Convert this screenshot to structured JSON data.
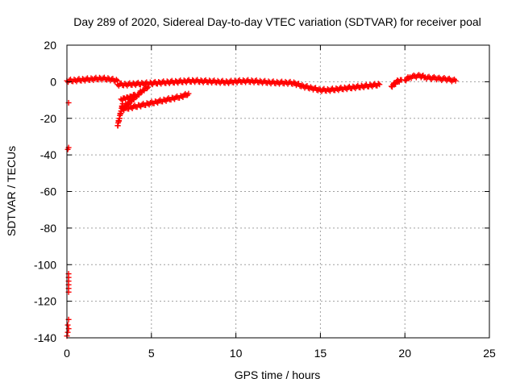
{
  "chart_data": {
    "type": "scatter",
    "title": "Day 289 of 2020, Sidereal Day-to-day VTEC variation (SDTVAR) for receiver poal",
    "xlabel": "GPS time / hours",
    "ylabel": "SDTVAR / TECUs",
    "xlim": [
      0,
      25
    ],
    "ylim": [
      -140,
      20
    ],
    "xticks": [
      0,
      5,
      10,
      15,
      20,
      25
    ],
    "yticks": [
      20,
      0,
      -20,
      -40,
      -60,
      -80,
      -100,
      -120,
      -140
    ],
    "grid": true,
    "marker": "+",
    "color": "#ff0000",
    "series": [
      {
        "name": "SDTVAR",
        "segments": [
          {
            "x": [
              0.0,
              0.5,
              1.0,
              1.5,
              2.0,
              2.5,
              3.0
            ],
            "y": [
              0.5,
              0.8,
              1.2,
              1.5,
              1.8,
              1.5,
              0.5
            ]
          },
          {
            "x": [
              3.0,
              3.5,
              4.0,
              4.5,
              5.0,
              5.5,
              6.0,
              6.5,
              7.0,
              7.5,
              8.0,
              8.5,
              9.0,
              9.5,
              10.0,
              10.5,
              11.0,
              11.5,
              12.0,
              12.5,
              13.0,
              13.5
            ],
            "y": [
              -1.5,
              -1.5,
              -1.2,
              -1.0,
              -0.8,
              -0.5,
              -0.2,
              0.0,
              0.3,
              0.5,
              0.3,
              0.2,
              0.0,
              -0.2,
              0.2,
              0.4,
              0.3,
              0.0,
              -0.3,
              -0.5,
              -0.5,
              -0.8
            ]
          },
          {
            "x": [
              13.5,
              14.0,
              14.5,
              15.0,
              15.5,
              16.0,
              16.5,
              17.0,
              17.5,
              18.0,
              18.5
            ],
            "y": [
              -1.0,
              -2.5,
              -3.5,
              -4.5,
              -4.5,
              -4.0,
              -3.5,
              -3.0,
              -2.5,
              -2.0,
              -1.5
            ]
          },
          {
            "x": [
              19.2,
              19.4,
              19.6,
              19.8
            ],
            "y": [
              -2.5,
              -1.0,
              0.5,
              1.0
            ]
          },
          {
            "x": [
              20.0,
              20.3,
              20.6,
              20.9,
              21.2,
              21.5,
              21.8,
              22.1,
              22.4,
              22.7,
              23.0
            ],
            "y": [
              1.0,
              2.5,
              3.0,
              3.2,
              2.5,
              2.0,
              2.0,
              1.5,
              1.5,
              1.0,
              0.5
            ]
          },
          {
            "x": [
              3.0,
              3.1,
              3.2,
              3.3
            ],
            "y": [
              -24,
              -20,
              -16,
              -12
            ]
          },
          {
            "x": [
              3.3,
              3.6,
              3.9,
              4.2,
              4.5,
              4.8
            ],
            "y": [
              -14,
              -12,
              -9.5,
              -7,
              -4.5,
              -3
            ]
          },
          {
            "x": [
              3.2,
              3.4,
              3.6,
              3.8,
              4.0
            ],
            "y": [
              -9.5,
              -9,
              -8.5,
              -8,
              -7
            ]
          },
          {
            "x": [
              3.3,
              3.8,
              4.3,
              4.8,
              5.3,
              5.8,
              6.3,
              6.8,
              7.2
            ],
            "y": [
              -15,
              -14,
              -13,
              -12,
              -11,
              -10,
              -9,
              -8,
              -6.5
            ]
          }
        ],
        "scattered": [
          {
            "x": 0.1,
            "y": -11.5
          },
          {
            "x": 0.1,
            "y": -36
          },
          {
            "x": 0.05,
            "y": -37
          },
          {
            "x": 0.1,
            "y": -105
          },
          {
            "x": 0.1,
            "y": -107
          },
          {
            "x": 0.1,
            "y": -109
          },
          {
            "x": 0.1,
            "y": -111
          },
          {
            "x": 0.1,
            "y": -113
          },
          {
            "x": 0.1,
            "y": -115
          },
          {
            "x": 0.1,
            "y": -130
          },
          {
            "x": 0.05,
            "y": -133
          },
          {
            "x": 0.1,
            "y": -135
          },
          {
            "x": 0.05,
            "y": -137
          },
          {
            "x": 0.0,
            "y": -139
          }
        ]
      }
    ]
  }
}
